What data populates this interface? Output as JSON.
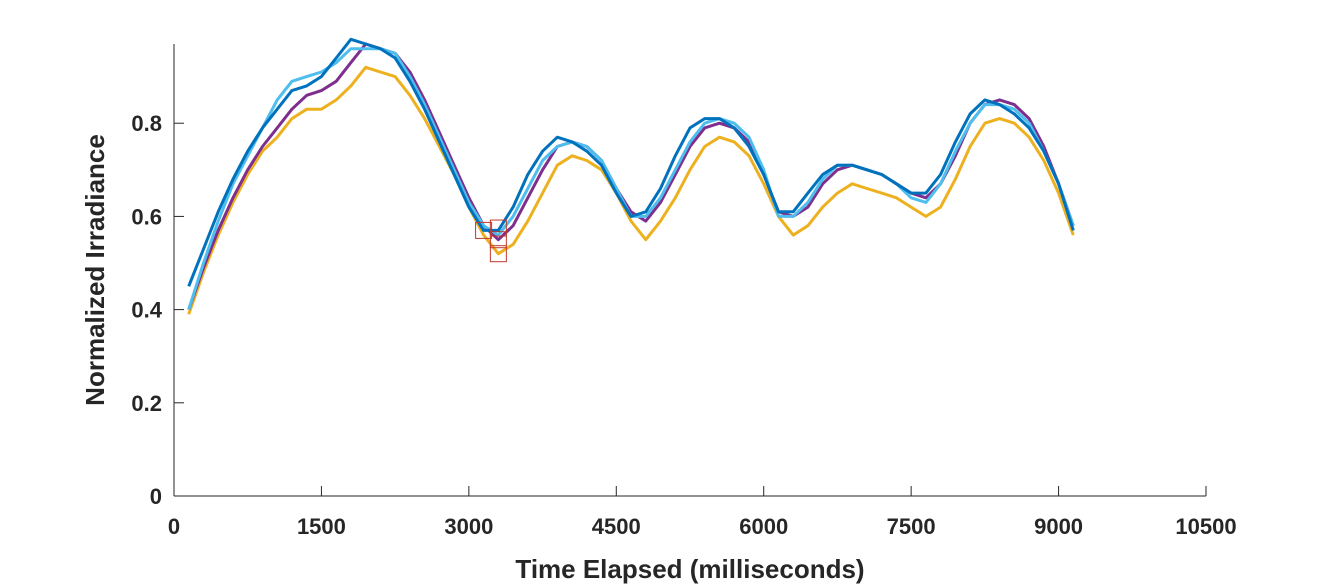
{
  "chart_data": {
    "type": "line",
    "xlabel": "Time Elapsed (milliseconds)",
    "ylabel": "Normalized Irradiance",
    "xlim": [
      0,
      10500
    ],
    "ylim": [
      0,
      0.97
    ],
    "xticks": [
      0,
      1500,
      3000,
      4500,
      6000,
      7500,
      9000,
      10500
    ],
    "yticks": [
      0,
      0.2,
      0.4,
      0.6,
      0.8
    ],
    "xtick_labels": [
      "0",
      "1500",
      "3000",
      "4500",
      "6000",
      "7500",
      "9000",
      "10500"
    ],
    "ytick_labels": [
      "0",
      "0.2",
      "0.4",
      "0.6",
      "0.8"
    ],
    "grid": false,
    "series": [
      {
        "color": "#EDB120",
        "x": [
          150,
          300,
          450,
          600,
          750,
          900,
          1050,
          1200,
          1350,
          1500,
          1650,
          1800,
          1950,
          2100,
          2250,
          2400,
          2550,
          2700,
          2850,
          3000,
          3150,
          3300,
          3450,
          3600,
          3750,
          3900,
          4050,
          4200,
          4350,
          4500,
          4650,
          4800,
          4950,
          5100,
          5250,
          5400,
          5550,
          5700,
          5850,
          6000,
          6150,
          6300,
          6450,
          6600,
          6750,
          6900,
          7050,
          7200,
          7350,
          7500,
          7650,
          7800,
          7950,
          8100,
          8250,
          8400,
          8550,
          8700,
          8850,
          9000,
          9150
        ],
        "y": [
          0.39,
          0.48,
          0.56,
          0.63,
          0.69,
          0.74,
          0.77,
          0.81,
          0.83,
          0.83,
          0.85,
          0.88,
          0.92,
          0.91,
          0.9,
          0.86,
          0.81,
          0.75,
          0.69,
          0.62,
          0.56,
          0.52,
          0.54,
          0.59,
          0.65,
          0.71,
          0.73,
          0.72,
          0.7,
          0.65,
          0.59,
          0.55,
          0.59,
          0.64,
          0.7,
          0.75,
          0.77,
          0.76,
          0.73,
          0.67,
          0.6,
          0.56,
          0.58,
          0.62,
          0.65,
          0.67,
          0.66,
          0.65,
          0.64,
          0.62,
          0.6,
          0.62,
          0.68,
          0.75,
          0.8,
          0.81,
          0.8,
          0.77,
          0.72,
          0.65,
          0.56
        ]
      },
      {
        "color": "#7E2F8E",
        "x": [
          150,
          300,
          450,
          600,
          750,
          900,
          1050,
          1200,
          1350,
          1500,
          1650,
          1800,
          1950,
          2100,
          2250,
          2400,
          2550,
          2700,
          2850,
          3000,
          3150,
          3300,
          3450,
          3600,
          3750,
          3900,
          4050,
          4200,
          4350,
          4500,
          4650,
          4800,
          4950,
          5100,
          5250,
          5400,
          5550,
          5700,
          5850,
          6000,
          6150,
          6300,
          6450,
          6600,
          6750,
          6900,
          7050,
          7200,
          7350,
          7500,
          7650,
          7800,
          7950,
          8100,
          8250,
          8400,
          8550,
          8700,
          8850,
          9000,
          9150
        ],
        "y": [
          0.4,
          0.49,
          0.57,
          0.64,
          0.7,
          0.75,
          0.79,
          0.83,
          0.86,
          0.87,
          0.89,
          0.93,
          0.97,
          0.96,
          0.95,
          0.91,
          0.85,
          0.78,
          0.71,
          0.64,
          0.58,
          0.55,
          0.58,
          0.64,
          0.7,
          0.75,
          0.76,
          0.75,
          0.72,
          0.66,
          0.61,
          0.59,
          0.63,
          0.69,
          0.75,
          0.79,
          0.8,
          0.79,
          0.76,
          0.69,
          0.61,
          0.6,
          0.62,
          0.67,
          0.7,
          0.71,
          0.7,
          0.69,
          0.67,
          0.65,
          0.64,
          0.67,
          0.73,
          0.8,
          0.84,
          0.85,
          0.84,
          0.81,
          0.75,
          0.67,
          0.58
        ]
      },
      {
        "color": "#4DBEEE",
        "x": [
          150,
          300,
          450,
          600,
          750,
          900,
          1050,
          1200,
          1350,
          1500,
          1650,
          1800,
          1950,
          2100,
          2250,
          2400,
          2550,
          2700,
          2850,
          3000,
          3150,
          3300,
          3450,
          3600,
          3750,
          3900,
          4050,
          4200,
          4350,
          4500,
          4650,
          4800,
          4950,
          5100,
          5250,
          5400,
          5550,
          5700,
          5850,
          6000,
          6150,
          6300,
          6450,
          6600,
          6750,
          6900,
          7050,
          7200,
          7350,
          7500,
          7650,
          7800,
          7950,
          8100,
          8250,
          8400,
          8550,
          8700,
          8850,
          9000,
          9150
        ],
        "y": [
          0.4,
          0.5,
          0.59,
          0.67,
          0.73,
          0.79,
          0.85,
          0.89,
          0.9,
          0.91,
          0.93,
          0.96,
          0.96,
          0.96,
          0.95,
          0.9,
          0.84,
          0.77,
          0.7,
          0.63,
          0.58,
          0.56,
          0.6,
          0.66,
          0.72,
          0.75,
          0.76,
          0.75,
          0.72,
          0.66,
          0.6,
          0.6,
          0.64,
          0.7,
          0.76,
          0.8,
          0.81,
          0.8,
          0.77,
          0.7,
          0.6,
          0.6,
          0.63,
          0.68,
          0.71,
          0.71,
          0.7,
          0.69,
          0.67,
          0.64,
          0.63,
          0.67,
          0.74,
          0.8,
          0.84,
          0.84,
          0.83,
          0.8,
          0.74,
          0.67,
          0.58
        ]
      },
      {
        "color": "#0072BD",
        "x": [
          150,
          300,
          450,
          600,
          750,
          900,
          1050,
          1200,
          1350,
          1500,
          1650,
          1800,
          1950,
          2100,
          2250,
          2400,
          2550,
          2700,
          2850,
          3000,
          3150,
          3300,
          3450,
          3600,
          3750,
          3900,
          4050,
          4200,
          4350,
          4500,
          4650,
          4800,
          4950,
          5100,
          5250,
          5400,
          5550,
          5700,
          5850,
          6000,
          6150,
          6300,
          6450,
          6600,
          6750,
          6900,
          7050,
          7200,
          7350,
          7500,
          7650,
          7800,
          7950,
          8100,
          8250,
          8400,
          8550,
          8700,
          8850,
          9000,
          9150
        ],
        "y": [
          0.45,
          0.53,
          0.61,
          0.68,
          0.74,
          0.79,
          0.83,
          0.87,
          0.88,
          0.9,
          0.94,
          0.98,
          0.97,
          0.96,
          0.94,
          0.89,
          0.83,
          0.76,
          0.69,
          0.62,
          0.57,
          0.57,
          0.62,
          0.69,
          0.74,
          0.77,
          0.76,
          0.74,
          0.71,
          0.65,
          0.6,
          0.61,
          0.66,
          0.73,
          0.79,
          0.81,
          0.81,
          0.79,
          0.75,
          0.69,
          0.61,
          0.61,
          0.65,
          0.69,
          0.71,
          0.71,
          0.7,
          0.69,
          0.67,
          0.65,
          0.65,
          0.69,
          0.76,
          0.82,
          0.85,
          0.84,
          0.82,
          0.79,
          0.74,
          0.67,
          0.57
        ]
      }
    ],
    "markers": [
      {
        "x": 3150,
        "y": 0.57
      },
      {
        "x": 3300,
        "y": 0.575
      },
      {
        "x": 3300,
        "y": 0.55
      },
      {
        "x": 3300,
        "y": 0.52
      }
    ]
  }
}
